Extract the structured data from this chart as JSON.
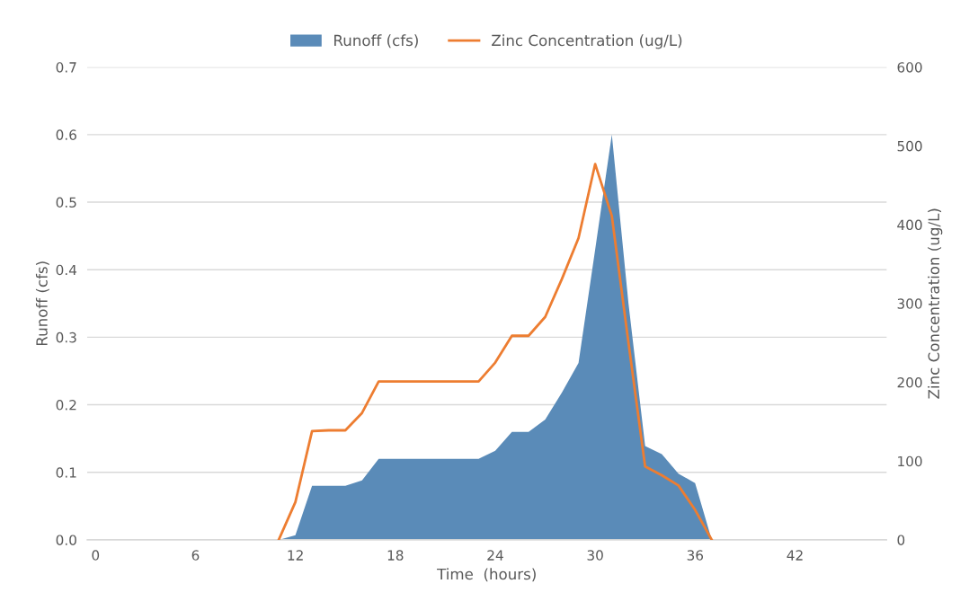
{
  "chart_data": {
    "type": "area",
    "xlabel": "Time  (hours)",
    "ylabel": "Runoff (cfs)",
    "y2label": "Zinc Concentration (ug/L)",
    "x": [
      11,
      12,
      13,
      14,
      15,
      16,
      17,
      18,
      19,
      20,
      21,
      22,
      23,
      24,
      25,
      26,
      27,
      28,
      29,
      30,
      31,
      32,
      33,
      34,
      35,
      36,
      37
    ],
    "series": [
      {
        "name": "Runoff (cfs)",
        "color": "#5a8bb8",
        "values": [
          0,
          0.007,
          0.08,
          0.08,
          0.08,
          0.088,
          0.12,
          0.12,
          0.12,
          0.12,
          0.12,
          0.12,
          0.12,
          0.132,
          0.16,
          0.16,
          0.178,
          0.218,
          0.262,
          0.43,
          0.6,
          0.35,
          0.139,
          0.127,
          0.098,
          0.084,
          0
        ]
      },
      {
        "name": "Zinc Concentration (ug/L)",
        "type": "line",
        "axis": "y2",
        "color": "#ed7d31",
        "values": [
          0,
          48,
          138,
          139,
          139,
          161,
          201,
          201,
          201,
          201,
          201,
          201,
          201,
          225,
          259,
          259,
          283,
          331,
          383,
          477,
          411,
          250,
          93,
          82,
          69,
          38,
          0
        ]
      }
    ],
    "xlim": [
      -0.5,
      47.5
    ],
    "xticks": [
      0,
      6,
      12,
      18,
      24,
      30,
      36,
      42
    ],
    "ylim": [
      0,
      0.7
    ],
    "yticks": [
      {
        "value": 0,
        "label": "0.0"
      },
      {
        "value": 0.1,
        "label": "0.1"
      },
      {
        "value": 0.2,
        "label": "0.2"
      },
      {
        "value": 0.3,
        "label": "0.3"
      },
      {
        "value": 0.4,
        "label": "0.4"
      },
      {
        "value": 0.5,
        "label": "0.5"
      },
      {
        "value": 0.6,
        "label": "0.6"
      },
      {
        "value": 0.7,
        "label": "0.7"
      }
    ],
    "y2lim": [
      0,
      600
    ],
    "y2ticks": [
      0,
      100,
      200,
      300,
      400,
      500,
      600
    ],
    "grid": "y",
    "legend": "top"
  }
}
